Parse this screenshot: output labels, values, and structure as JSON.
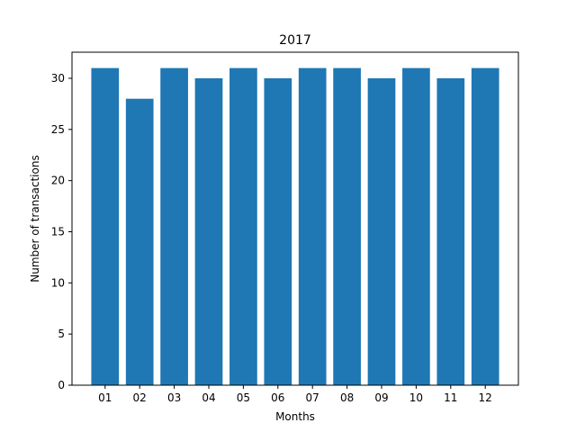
{
  "chart_data": {
    "type": "bar",
    "title": "2017",
    "xlabel": "Months",
    "ylabel": "Number of transactions",
    "categories": [
      "01",
      "02",
      "03",
      "04",
      "05",
      "06",
      "07",
      "08",
      "09",
      "10",
      "11",
      "12"
    ],
    "values": [
      31,
      28,
      31,
      30,
      31,
      30,
      31,
      31,
      30,
      31,
      30,
      31
    ],
    "ylim": [
      0,
      32.55
    ],
    "yticks": [
      0,
      5,
      10,
      15,
      20,
      25,
      30
    ],
    "bar_color": "#1f77b4",
    "grid": false,
    "legend": "none"
  }
}
